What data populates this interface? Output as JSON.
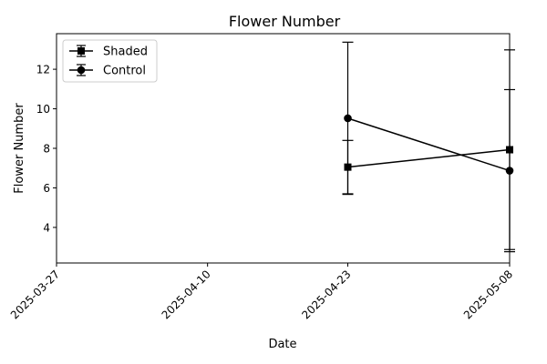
{
  "chart_data": {
    "type": "line",
    "title": "Flower Number",
    "xlabel": "Date",
    "ylabel": "Flower Number",
    "x_ticks": [
      "2025-03-27",
      "2025-04-10",
      "2025-04-23",
      "2025-05-08"
    ],
    "xlim": [
      "2025-03-27",
      "2025-05-08"
    ],
    "y_ticks": [
      4,
      6,
      8,
      10,
      12
    ],
    "ylim": [
      2.2,
      13.8
    ],
    "grid": false,
    "legend_position": "top-left",
    "series": [
      {
        "name": "Shaded",
        "marker": "square",
        "color": "#000000",
        "points": [
          {
            "x": "2025-04-23",
            "y": 7.05,
            "err": 1.35
          },
          {
            "x": "2025-05-08",
            "y": 7.93,
            "err": 5.05
          }
        ]
      },
      {
        "name": "Control",
        "marker": "circle",
        "color": "#000000",
        "points": [
          {
            "x": "2025-04-23",
            "y": 9.52,
            "err": 3.85
          },
          {
            "x": "2025-05-08",
            "y": 6.87,
            "err": 4.1
          }
        ]
      }
    ]
  }
}
